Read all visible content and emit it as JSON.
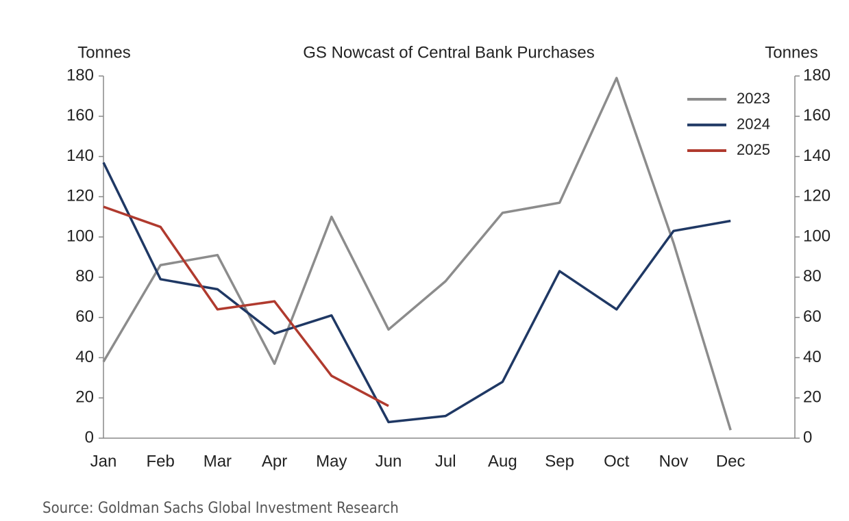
{
  "chart_data": {
    "type": "line",
    "title": "GS Nowcast of Central Bank Purchases",
    "y_label": "Tonnes",
    "y2_label": "Tonnes",
    "source": "Source: Goldman Sachs Global Investment Research",
    "categories": [
      "Jan",
      "Feb",
      "Mar",
      "Apr",
      "May",
      "Jun",
      "Jul",
      "Aug",
      "Sep",
      "Oct",
      "Nov",
      "Dec"
    ],
    "series": [
      {
        "name": "2023",
        "color": "#8c8c8c",
        "values": [
          38,
          86,
          91,
          37,
          110,
          54,
          78,
          112,
          117,
          179,
          97,
          4
        ]
      },
      {
        "name": "2024",
        "color": "#1f3864",
        "values": [
          137,
          79,
          74,
          52,
          61,
          8,
          11,
          28,
          83,
          64,
          103,
          108
        ]
      },
      {
        "name": "2025",
        "color": "#b03a2e",
        "values": [
          115,
          105,
          64,
          68,
          31,
          16,
          null,
          null,
          null,
          null,
          null,
          null
        ]
      }
    ],
    "ylim": [
      0,
      180
    ],
    "yticks": [
      0,
      20,
      40,
      60,
      80,
      100,
      120,
      140,
      160,
      180
    ],
    "y2lim": [
      0,
      180
    ],
    "y2ticks": [
      0,
      20,
      40,
      60,
      80,
      100,
      120,
      140,
      160,
      180
    ],
    "grid": false,
    "legend": "top-right"
  }
}
